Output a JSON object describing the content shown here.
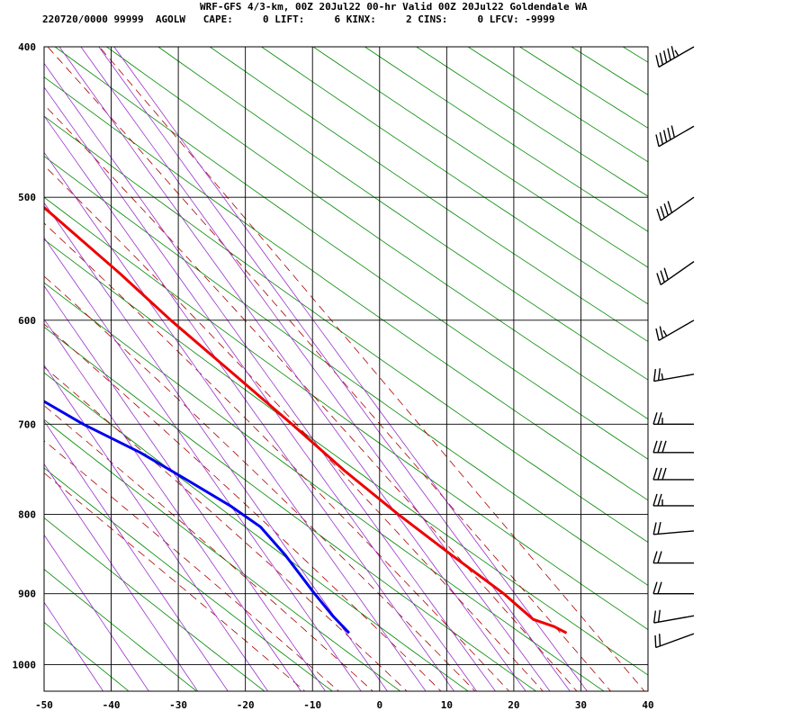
{
  "header": {
    "title_line": "WRF-GFS 4/3-km, 00Z 20Jul22 00-hr Valid 00Z 20Jul22 Goldendale WA",
    "stats_line": "220720/0000 99999  AGOLW   CAPE:     0 LIFT:     6 KINX:     2 CINS:     0 LFCV: -9999"
  },
  "chart_data": {
    "type": "line",
    "subtype": "skew-t log-p sounding",
    "title": "WRF-GFS 4/3-km, 00Z 20Jul22 00-hr Valid 00Z 20Jul22 Goldendale WA",
    "xlabel": "",
    "ylabel": "",
    "xlim": [
      -50,
      40
    ],
    "ylim": [
      1040,
      400
    ],
    "y_scale": "log (pressure, hPa)",
    "x_ticks": [
      -50,
      -40,
      -30,
      -20,
      -10,
      0,
      10,
      20,
      30,
      40
    ],
    "y_ticks": [
      400,
      500,
      600,
      700,
      800,
      900,
      1000
    ],
    "grid": true,
    "series": [
      {
        "color": "#ee0000",
        "points": [
          {
            "p": 954,
            "t": 32.8
          },
          {
            "p": 945,
            "t": 31.5
          },
          {
            "p": 935,
            "t": 29.0
          },
          {
            "p": 900,
            "t": 26.8
          },
          {
            "p": 850,
            "t": 22.3
          },
          {
            "p": 800,
            "t": 17.8
          },
          {
            "p": 750,
            "t": 13.5
          },
          {
            "p": 700,
            "t": 9.6
          },
          {
            "p": 650,
            "t": 5.2
          },
          {
            "p": 600,
            "t": 0.4
          },
          {
            "p": 560,
            "t": -3.2
          },
          {
            "p": 500,
            "t": -9.8
          },
          {
            "p": 450,
            "t": -15.8
          },
          {
            "p": 400,
            "t": -22.6
          }
        ]
      },
      {
        "color": "#0000ee",
        "points": [
          {
            "p": 954,
            "t": 0.4
          },
          {
            "p": 930,
            "t": -0.6
          },
          {
            "p": 900,
            "t": -1.4
          },
          {
            "p": 850,
            "t": -2.5
          },
          {
            "p": 815,
            "t": -3.8
          },
          {
            "p": 790,
            "t": -6.5
          },
          {
            "p": 760,
            "t": -10.8
          },
          {
            "p": 730,
            "t": -15.4
          },
          {
            "p": 700,
            "t": -21.5
          },
          {
            "p": 660,
            "t": -28.3
          },
          {
            "p": 615,
            "t": -35.2
          },
          {
            "p": 560,
            "t": -40.5
          },
          {
            "p": 510,
            "t": -45.0
          },
          {
            "p": 460,
            "t": -51.0
          },
          {
            "p": 400,
            "t": -53.0
          }
        ]
      }
    ],
    "background_lines": {
      "dry_adiabats_color": "#008800",
      "moist_adiabats_color": "#aa0000",
      "mixing_ratio_color": "#9933cc"
    },
    "wind_barbs": [
      {
        "p": 400,
        "dir": 240,
        "speed_kt": 55
      },
      {
        "p": 450,
        "dir": 240,
        "speed_kt": 50
      },
      {
        "p": 500,
        "dir": 235,
        "speed_kt": 40
      },
      {
        "p": 550,
        "dir": 235,
        "speed_kt": 30
      },
      {
        "p": 600,
        "dir": 240,
        "speed_kt": 25
      },
      {
        "p": 650,
        "dir": 260,
        "speed_kt": 25
      },
      {
        "p": 700,
        "dir": 270,
        "speed_kt": 25
      },
      {
        "p": 730,
        "dir": 270,
        "speed_kt": 30
      },
      {
        "p": 760,
        "dir": 270,
        "speed_kt": 30
      },
      {
        "p": 790,
        "dir": 270,
        "speed_kt": 25
      },
      {
        "p": 820,
        "dir": 265,
        "speed_kt": 20
      },
      {
        "p": 860,
        "dir": 270,
        "speed_kt": 20
      },
      {
        "p": 900,
        "dir": 270,
        "speed_kt": 20
      },
      {
        "p": 930,
        "dir": 260,
        "speed_kt": 20
      },
      {
        "p": 955,
        "dir": 250,
        "speed_kt": 20
      }
    ]
  }
}
